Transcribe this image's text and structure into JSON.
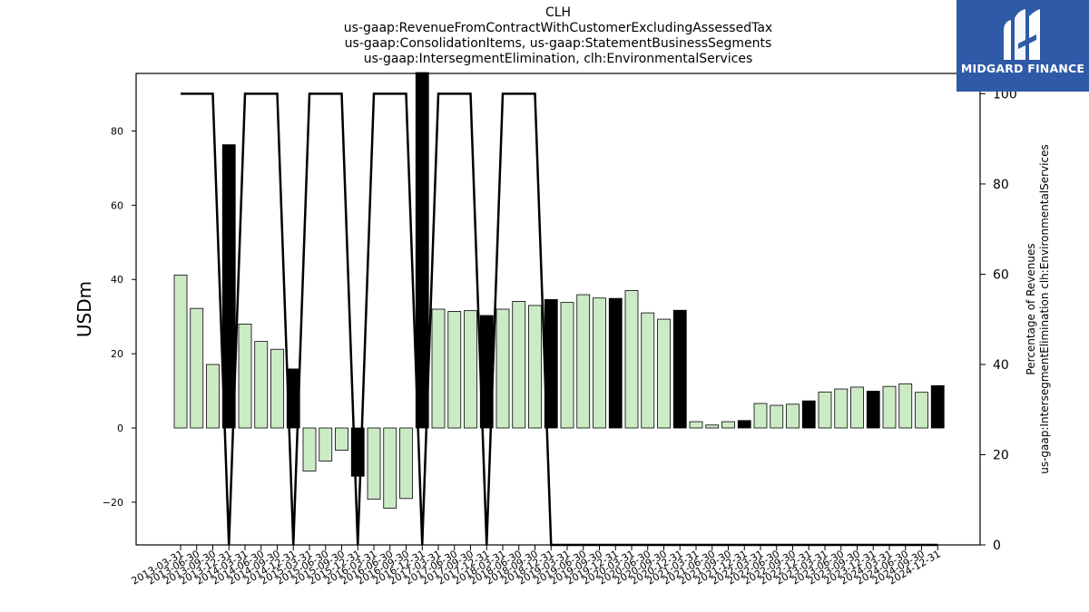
{
  "title_lines": [
    "CLH",
    "us-gaap:RevenueFromContractWithCustomerExcludingAssessedTax",
    "us-gaap:ConsolidationItems, us-gaap:StatementBusinessSegments",
    "us-gaap:IntersegmentElimination, clh:EnvironmentalServices"
  ],
  "logo": {
    "text": "MIDGARD FINANCE",
    "icon": "midgard-logo-icon",
    "color": "#2f5aa8"
  },
  "chart_data": {
    "type": "bar",
    "ylabel": "USDm",
    "y2label": [
      "Percentage of Revenues",
      "us-gaap:IntersegmentElimination clh:EnvironmentalServices"
    ],
    "ylim": [
      -31.5,
      95.5
    ],
    "y2lim": [
      0,
      104.5
    ],
    "yticks": [
      -20,
      0,
      20,
      40,
      60,
      80
    ],
    "y2ticks": [
      0,
      20,
      40,
      60,
      80,
      100
    ],
    "grid": false,
    "colors": {
      "positive_bar": "#cdeac6",
      "highlight_bar": "#000000",
      "line": "#000000"
    },
    "categories": [
      "2013-03-31",
      "2013-06-30",
      "2013-09-30",
      "2013-12-31",
      "2014-03-31",
      "2014-06-30",
      "2014-09-30",
      "2014-12-31",
      "2015-03-31",
      "2015-06-30",
      "2015-09-30",
      "2015-12-31",
      "2016-03-31",
      "2016-06-30",
      "2016-09-30",
      "2016-12-31",
      "2017-03-31",
      "2017-06-30",
      "2017-09-30",
      "2017-12-31",
      "2018-03-31",
      "2018-06-30",
      "2018-09-30",
      "2018-12-31",
      "2019-03-31",
      "2019-06-30",
      "2019-09-30",
      "2019-12-31",
      "2020-03-31",
      "2020-06-30",
      "2020-09-30",
      "2020-12-31",
      "2021-03-31",
      "2021-06-30",
      "2021-09-30",
      "2021-12-31",
      "2022-03-31",
      "2022-06-30",
      "2022-09-30",
      "2022-12-31",
      "2023-03-31",
      "2023-06-30",
      "2023-09-30",
      "2023-12-31",
      "2024-03-31",
      "2024-06-30",
      "2024-09-30",
      "2024-12-31"
    ],
    "series": [
      {
        "kind": "bar",
        "values": [
          41.2,
          32.2,
          17.1,
          76.3,
          28.0,
          23.3,
          21.2,
          15.9,
          -11.6,
          -8.9,
          -6.0,
          -13.0,
          -19.2,
          -21.6,
          -19.0,
          96.5,
          32.0,
          31.4,
          31.6,
          30.3,
          32.0,
          34.1,
          33.0,
          34.6,
          33.8,
          35.9,
          35.0,
          34.9,
          37.0,
          31.0,
          29.3,
          31.7,
          1.7,
          0.8,
          1.7,
          2.0,
          6.6,
          6.1,
          6.4,
          7.3,
          9.7,
          10.5,
          11.0,
          9.9,
          11.2,
          11.9,
          9.6,
          11.4
        ],
        "highlight": [
          false,
          false,
          false,
          true,
          false,
          false,
          false,
          true,
          false,
          false,
          false,
          true,
          false,
          false,
          false,
          true,
          false,
          false,
          false,
          true,
          false,
          false,
          false,
          true,
          false,
          false,
          false,
          true,
          false,
          false,
          false,
          true,
          false,
          false,
          false,
          true,
          false,
          false,
          false,
          true,
          false,
          false,
          false,
          true,
          false,
          false,
          false,
          true
        ]
      },
      {
        "kind": "line",
        "axis": "right",
        "values": [
          100,
          100,
          100,
          0,
          100,
          100,
          100,
          0,
          100,
          100,
          100,
          0,
          100,
          100,
          100,
          0,
          100,
          100,
          100,
          0,
          100,
          100,
          100,
          0,
          0,
          0,
          0,
          0,
          0,
          0,
          0,
          0,
          0,
          0,
          0,
          0,
          0,
          0,
          0,
          0,
          0,
          0,
          0,
          0,
          0,
          0,
          0,
          0
        ]
      }
    ]
  }
}
